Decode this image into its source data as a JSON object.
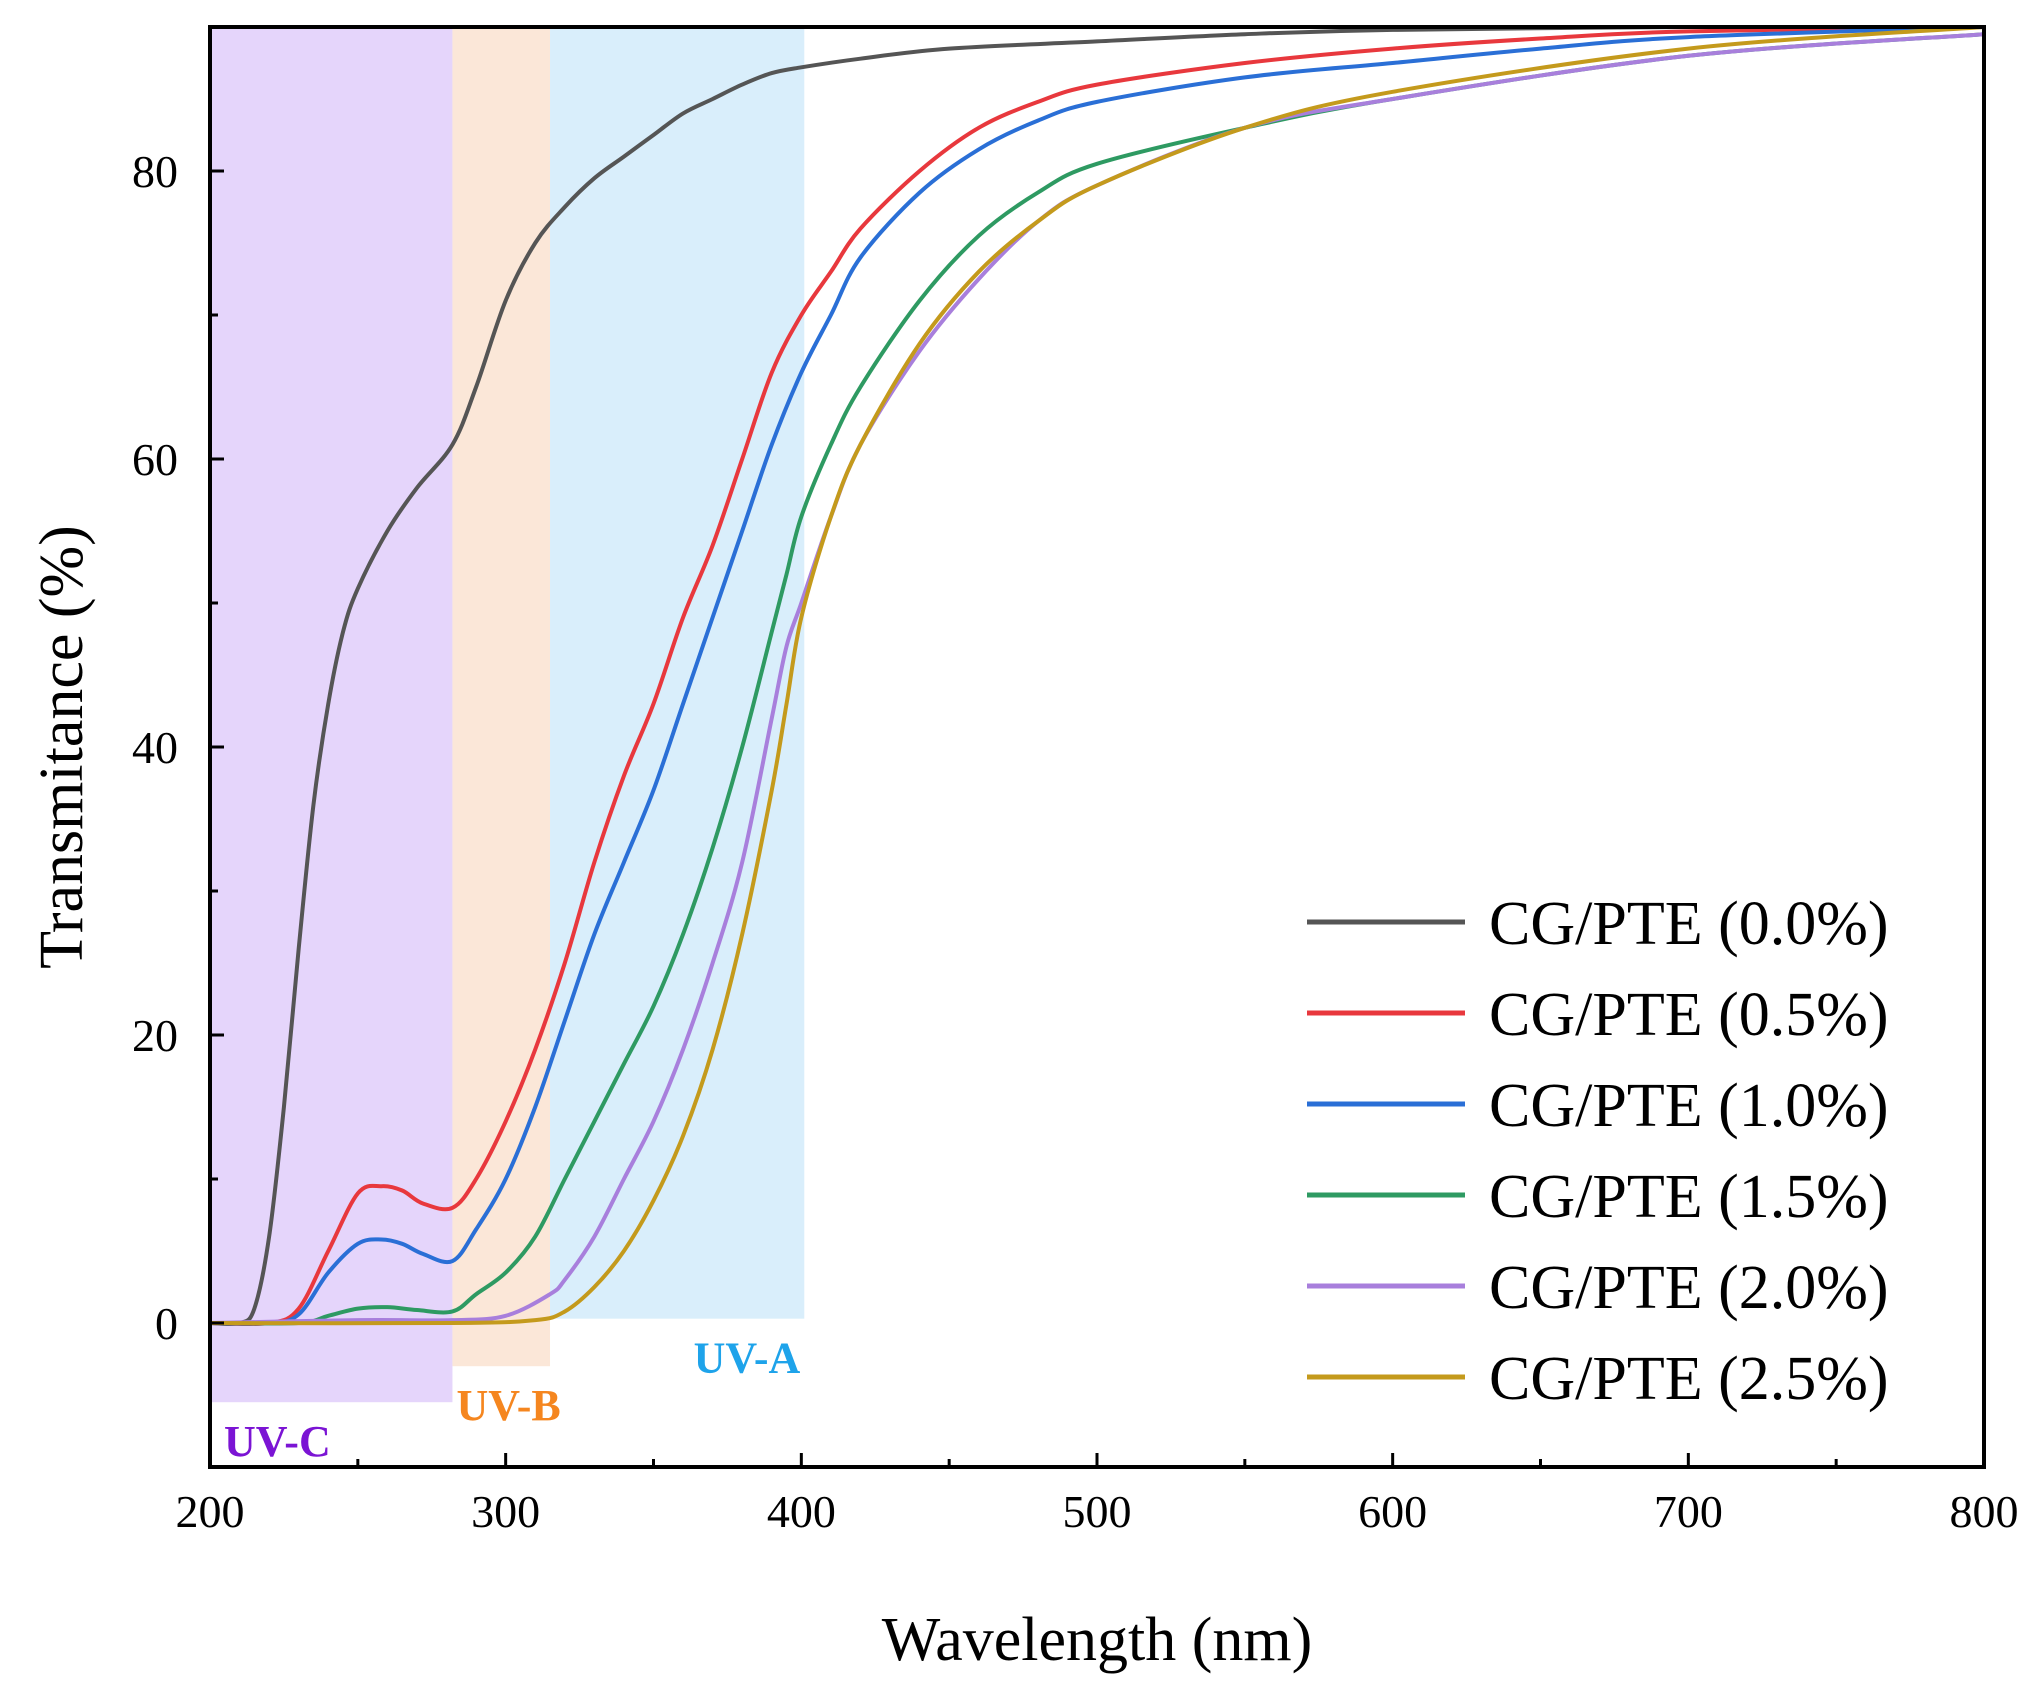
{
  "chart_data": {
    "type": "line",
    "title": "",
    "xlabel": "Wavelength (nm)",
    "ylabel": "Transmitance (%)",
    "xlim": [
      200,
      800
    ],
    "ylim": [
      -10,
      90
    ],
    "xticks": [
      200,
      300,
      400,
      500,
      600,
      700,
      800
    ],
    "yticks": [
      0,
      20,
      40,
      60,
      80
    ],
    "xticks_minor": [
      250,
      350,
      450,
      550,
      650,
      750
    ],
    "yticks_minor": [
      10,
      30,
      50,
      70
    ],
    "grid": false,
    "legend_position": "bottom-right",
    "bands": [
      {
        "label": "UV-C",
        "x_range": [
          200,
          282
        ],
        "y_range": [
          -5.5,
          90
        ],
        "fill": "#e5d5fb",
        "text_color": "#7b14d4"
      },
      {
        "label": "UV-B",
        "x_range": [
          282,
          315
        ],
        "y_range": [
          -3,
          90
        ],
        "fill": "#fbe7d8",
        "text_color": "#f5861f"
      },
      {
        "label": "UV-A",
        "x_range": [
          315,
          401
        ],
        "y_range": [
          0.3,
          90
        ],
        "fill": "#d9eefb",
        "text_color": "#1ea3ea"
      }
    ],
    "series": [
      {
        "name": "CG/PTE (0.0%)",
        "color": "#555555",
        "x": [
          200,
          210,
          215,
          220,
          225,
          230,
          235,
          240,
          245,
          250,
          260,
          270,
          282,
          290,
          300,
          310,
          320,
          330,
          340,
          350,
          360,
          370,
          380,
          390,
          400,
          420,
          450,
          500,
          550,
          600,
          700,
          800
        ],
        "y": [
          0,
          0,
          1,
          6,
          15,
          26,
          36,
          43,
          48,
          51,
          55,
          58,
          61,
          65,
          71,
          75,
          77.5,
          79.5,
          81,
          82.5,
          84,
          85,
          86,
          86.8,
          87.2,
          87.8,
          88.5,
          89,
          89.5,
          89.8,
          90,
          90
        ]
      },
      {
        "name": "CG/PTE (0.5%)",
        "color": "#e8383d",
        "x": [
          200,
          220,
          230,
          240,
          250,
          258,
          265,
          272,
          282,
          290,
          300,
          310,
          320,
          330,
          340,
          350,
          360,
          370,
          380,
          390,
          400,
          410,
          420,
          440,
          460,
          480,
          500,
          550,
          600,
          650,
          700,
          800
        ],
        "y": [
          0,
          0,
          1,
          5,
          9,
          9.5,
          9.2,
          8.3,
          8,
          10,
          14,
          19,
          25,
          32,
          38,
          43,
          49,
          54,
          60,
          66,
          70,
          73,
          76,
          80,
          83,
          84.8,
          86,
          87.5,
          88.5,
          89.2,
          89.7,
          90
        ]
      },
      {
        "name": "CG/PTE (1.0%)",
        "color": "#2a6fd6",
        "x": [
          200,
          220,
          230,
          240,
          250,
          258,
          265,
          272,
          282,
          290,
          300,
          310,
          320,
          330,
          340,
          350,
          360,
          370,
          380,
          390,
          400,
          410,
          420,
          440,
          460,
          480,
          500,
          550,
          600,
          650,
          700,
          800
        ],
        "y": [
          0,
          0,
          0.6,
          3.5,
          5.5,
          5.8,
          5.5,
          4.8,
          4.3,
          6.5,
          10,
          15,
          21,
          27,
          32,
          37,
          43,
          49,
          55,
          61,
          66,
          70,
          74,
          78.5,
          81.5,
          83.5,
          84.8,
          86.5,
          87.5,
          88.5,
          89.3,
          90
        ]
      },
      {
        "name": "CG/PTE (1.5%)",
        "color": "#2e9a62",
        "x": [
          200,
          230,
          240,
          250,
          260,
          270,
          282,
          290,
          300,
          310,
          320,
          330,
          340,
          350,
          360,
          370,
          380,
          390,
          395,
          400,
          410,
          420,
          440,
          460,
          480,
          500,
          550,
          600,
          700,
          800
        ],
        "y": [
          0,
          0,
          0.5,
          1,
          1.1,
          0.9,
          0.8,
          2,
          3.5,
          6,
          10,
          14,
          18,
          22,
          27,
          33,
          40,
          48,
          52,
          56,
          61,
          65,
          71,
          75.5,
          78.5,
          80.5,
          83,
          85,
          88,
          89.5
        ]
      },
      {
        "name": "CG/PTE (2.0%)",
        "color": "#a87fdc",
        "x": [
          200,
          250,
          282,
          300,
          315,
          320,
          330,
          340,
          350,
          360,
          370,
          380,
          390,
          395,
          400,
          410,
          420,
          440,
          460,
          480,
          500,
          550,
          600,
          700,
          800
        ],
        "y": [
          0,
          0.2,
          0.2,
          0.5,
          2,
          3,
          6,
          10,
          14,
          19,
          25,
          32,
          42,
          47,
          50,
          56,
          61,
          67.5,
          72.5,
          76.5,
          79,
          83,
          85,
          88,
          89.5
        ]
      },
      {
        "name": "CG/PTE (2.5%)",
        "color": "#c49a1c",
        "x": [
          200,
          282,
          310,
          320,
          330,
          340,
          350,
          360,
          370,
          380,
          390,
          395,
          400,
          410,
          420,
          440,
          460,
          480,
          500,
          550,
          600,
          700,
          800
        ],
        "y": [
          0,
          0,
          0.2,
          0.8,
          2.5,
          5,
          8.5,
          13,
          19,
          27,
          37,
          43,
          49,
          56,
          61,
          68,
          73,
          76.5,
          79,
          83,
          85.5,
          88.5,
          90
        ]
      }
    ]
  }
}
